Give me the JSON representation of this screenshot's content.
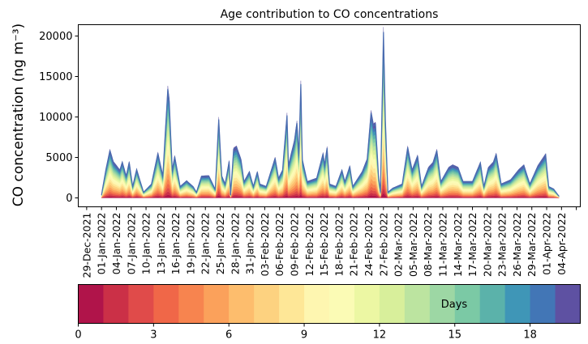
{
  "chart_data": {
    "type": "area",
    "title": "Age contribution to CO concentrations",
    "ylabel": "CO concentration (ng m⁻³)",
    "xlabel": "",
    "ylim": [
      -1100,
      21400
    ],
    "yticks": [
      0,
      5000,
      10000,
      15000,
      20000
    ],
    "ytick_labels": [
      "0",
      "5000",
      "10000",
      "15000",
      "20000"
    ],
    "x_unit": "days since 29-Dec-2021",
    "xlim": [
      -1.7,
      99.8
    ],
    "xtick_labels": [
      "29-Dec-2021",
      "01-Jan-2022",
      "04-Jan-2022",
      "07-Jan-2022",
      "10-Jan-2022",
      "13-Jan-2022",
      "16-Jan-2022",
      "19-Jan-2022",
      "22-Jan-2022",
      "25-Jan-2022",
      "28-Jan-2022",
      "31-Jan-2022",
      "03-Feb-2022",
      "06-Feb-2022",
      "09-Feb-2022",
      "12-Feb-2022",
      "15-Feb-2022",
      "18-Feb-2022",
      "21-Feb-2022",
      "24-Feb-2022",
      "27-Feb-2022",
      "02-Mar-2022",
      "05-Mar-2022",
      "08-Mar-2022",
      "11-Mar-2022",
      "14-Mar-2022",
      "17-Mar-2022",
      "20-Mar-2022",
      "23-Mar-2022",
      "26-Mar-2022",
      "29-Mar-2022",
      "01-Apr-2022",
      "04-Apr-2022"
    ],
    "total_series": {
      "x": [
        3,
        3.9,
        4.7,
        5.4,
        6.7,
        7.2,
        8,
        8.6,
        9.3,
        10.1,
        11.5,
        13.1,
        14.4,
        15.4,
        16.4,
        16.7,
        17.3,
        17.8,
        18.9,
        20.2,
        21.5,
        22.2,
        23.2,
        24.7,
        26,
        26.7,
        27.3,
        28,
        28.8,
        29.1,
        29.7,
        30.3,
        31.2,
        31.8,
        32.9,
        33.7,
        34.5,
        35,
        36.3,
        38.1,
        38.8,
        39.6,
        40.5,
        40.8,
        42,
        42.5,
        42.9,
        43.3,
        43.6,
        44.6,
        46.5,
        47.8,
        48.1,
        48.6,
        49.1,
        50.4,
        51.6,
        52.2,
        53.2,
        53.8,
        55.7,
        56.7,
        57.5,
        58,
        58.4,
        59,
        59.4,
        60,
        60.4,
        60.9,
        61.9,
        63.8,
        64.9,
        65.8,
        66.9,
        67.7,
        69.1,
        70,
        70.8,
        71.6,
        73.2,
        74,
        75.1,
        76.1,
        78,
        79.6,
        80.3,
        81.2,
        82.2,
        82.8,
        83.8,
        85.7,
        87.3,
        88.4,
        89.6,
        91.2,
        92.8,
        93.4,
        94.4,
        95.5
      ],
      "y": [
        370,
        3560,
        5840,
        4400,
        3400,
        4400,
        2700,
        4400,
        1400,
        3500,
        700,
        1700,
        5500,
        2700,
        13450,
        11900,
        3400,
        5100,
        1400,
        2100,
        1400,
        700,
        2650,
        2700,
        1050,
        9700,
        2700,
        1700,
        4500,
        370,
        6000,
        6250,
        4700,
        2000,
        3200,
        1400,
        3200,
        1700,
        1400,
        4900,
        2400,
        3400,
        10200,
        4000,
        7000,
        9250,
        5400,
        14060,
        4700,
        2000,
        2400,
        5470,
        4060,
        6170,
        1700,
        1400,
        3400,
        2000,
        3900,
        1400,
        3200,
        4730,
        10500,
        8900,
        9100,
        2700,
        700,
        20500,
        9500,
        700,
        1200,
        1700,
        6240,
        3400,
        5170,
        1400,
        3700,
        4300,
        5840,
        2000,
        3700,
        4000,
        3700,
        2000,
        2000,
        4330,
        1400,
        3700,
        4330,
        5400,
        1700,
        2200,
        3400,
        4000,
        1700,
        3900,
        5330,
        1400,
        1100,
        200
      ]
    },
    "age_fraction": [
      0.03,
      0.03,
      0.035,
      0.04,
      0.045,
      0.05,
      0.055,
      0.06,
      0.06,
      0.065,
      0.065,
      0.06,
      0.06,
      0.055,
      0.05,
      0.05,
      0.05,
      0.05,
      0.045,
      0.075
    ],
    "colorbar": {
      "label": "Days",
      "range": [
        0,
        20
      ],
      "ticks": [
        0,
        3,
        6,
        9,
        12,
        15,
        18
      ],
      "tick_labels": [
        "0",
        "3",
        "6",
        "9",
        "12",
        "15",
        "18"
      ],
      "colors": [
        "#b0144a",
        "#cb3047",
        "#e04b4a",
        "#f06748",
        "#f7844f",
        "#fba15b",
        "#fdbd6d",
        "#fdd280",
        "#fee797",
        "#fef6b0",
        "#fbfbb5",
        "#ecf7a3",
        "#d8ef9b",
        "#bce4a0",
        "#9dd7a4",
        "#7bc9a5",
        "#5bb2aa",
        "#3f96b7",
        "#4276b6",
        "#5e51a2"
      ]
    }
  }
}
